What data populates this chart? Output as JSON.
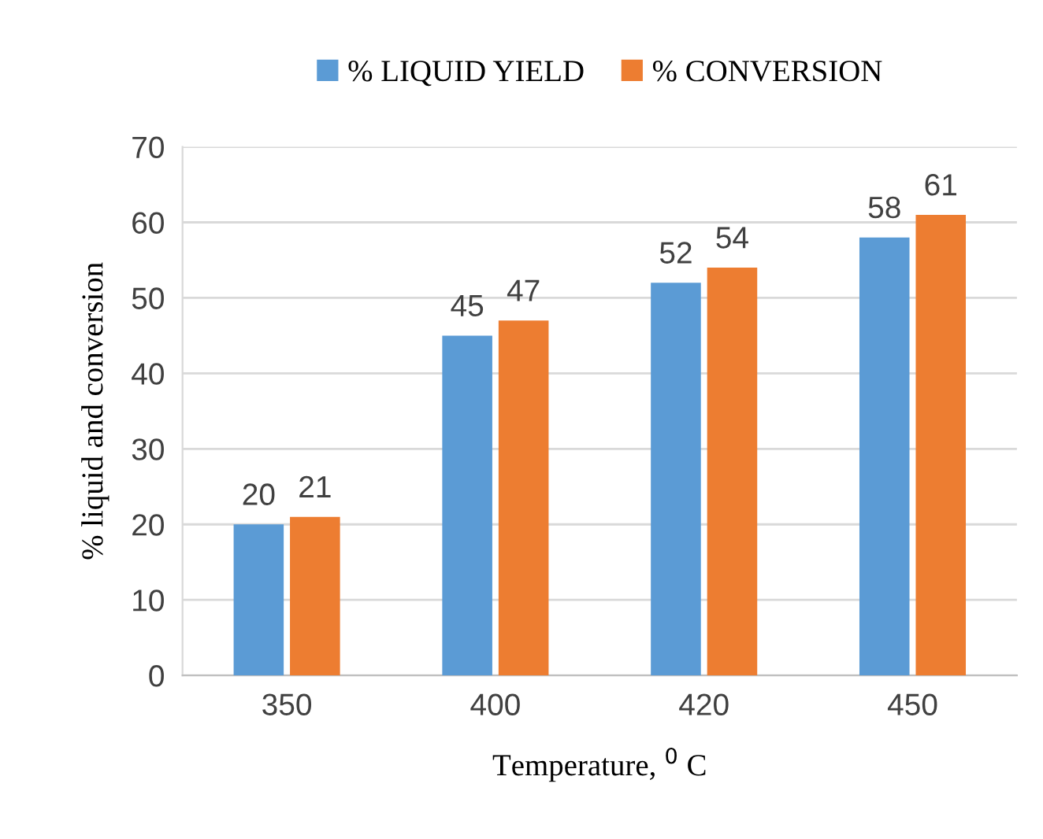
{
  "chart_data": {
    "type": "bar",
    "categories": [
      "350",
      "400",
      "420",
      "450"
    ],
    "series": [
      {
        "name": "% LIQUID YIELD",
        "color": "#5b9bd5",
        "values": [
          20,
          45,
          52,
          58
        ]
      },
      {
        "name": "% CONVERSION",
        "color": "#ed7d31",
        "values": [
          21,
          47,
          54,
          61
        ]
      }
    ],
    "xlabel": "Temperature, $^{0}$ C",
    "ylabel": "% liquid and conversion",
    "ylim": [
      0,
      70
    ],
    "yticks": [
      0,
      10,
      20,
      30,
      40,
      50,
      60,
      70
    ],
    "grid": "y",
    "legend": "top",
    "data_labels": true
  }
}
